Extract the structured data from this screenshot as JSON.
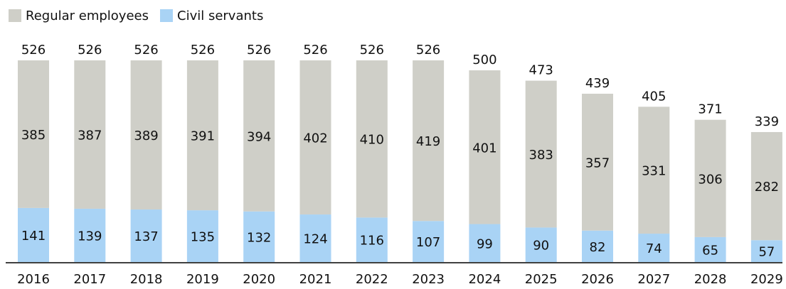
{
  "chart_data": {
    "type": "stacked_bar",
    "categories": [
      "2016",
      "2017",
      "2018",
      "2019",
      "2020",
      "2021",
      "2022",
      "2023",
      "2024",
      "2025",
      "2026",
      "2027",
      "2028",
      "2029"
    ],
    "series": [
      {
        "name": "Civil servants",
        "color": "#a9d3f5",
        "values": [
          141,
          139,
          137,
          135,
          132,
          124,
          116,
          107,
          99,
          90,
          82,
          74,
          65,
          57
        ]
      },
      {
        "name": "Regular employees",
        "color": "#cfcfc8",
        "values": [
          385,
          387,
          389,
          391,
          394,
          402,
          410,
          419,
          401,
          383,
          357,
          331,
          306,
          282
        ]
      }
    ],
    "totals": [
      526,
      526,
      526,
      526,
      526,
      526,
      526,
      526,
      500,
      473,
      439,
      405,
      371,
      339
    ],
    "legend": "top-left"
  }
}
